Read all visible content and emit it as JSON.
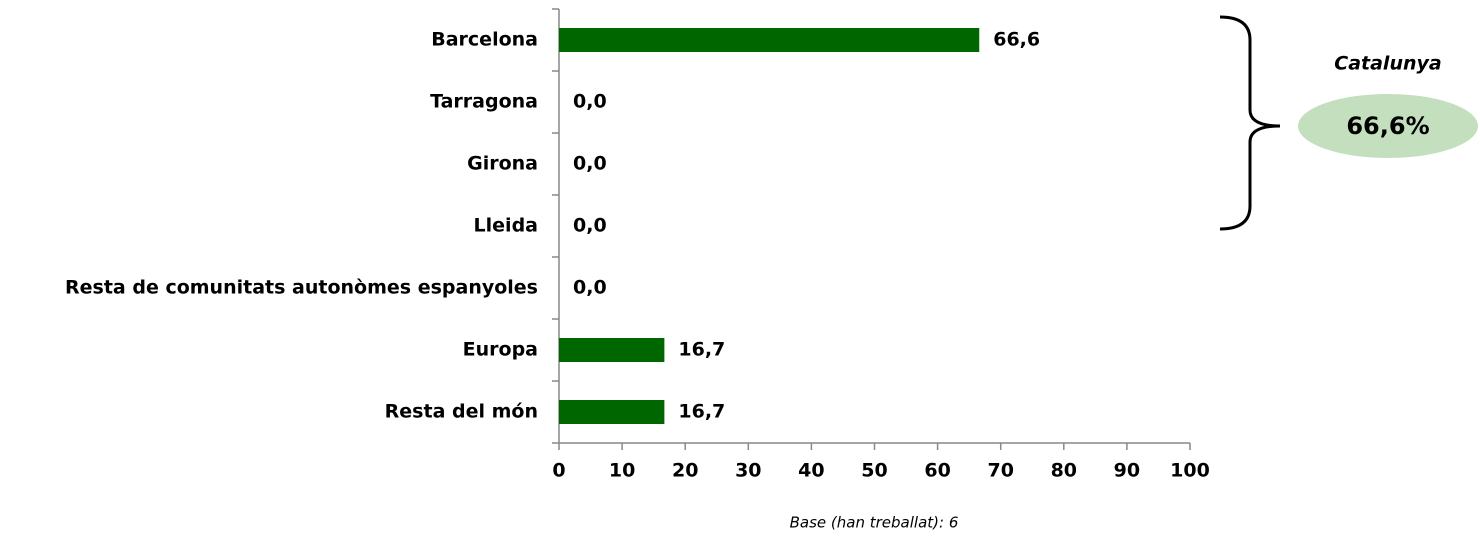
{
  "chart_data": {
    "type": "barh",
    "categories": [
      "Barcelona",
      "Tarragona",
      "Girona",
      "Lleida",
      "Resta de comunitats autonòmes espanyoles",
      "Europa",
      "Resta del món"
    ],
    "values": [
      66.6,
      0,
      0,
      0,
      0,
      16.7,
      16.7
    ],
    "value_labels": [
      "66,6",
      "0,0",
      "0,0",
      "0,0",
      "0,0",
      "16,7",
      "16,7"
    ],
    "color": "#006600",
    "xlim": [
      0,
      100
    ],
    "xticks": [
      0,
      10,
      20,
      30,
      40,
      50,
      60,
      70,
      80,
      90,
      100
    ],
    "annotation": {
      "label": "Catalunya",
      "value": 66.6,
      "value_label": "66,6%",
      "color": "#c4dfbd"
    },
    "footnote": "Base (han treballat): 6"
  }
}
